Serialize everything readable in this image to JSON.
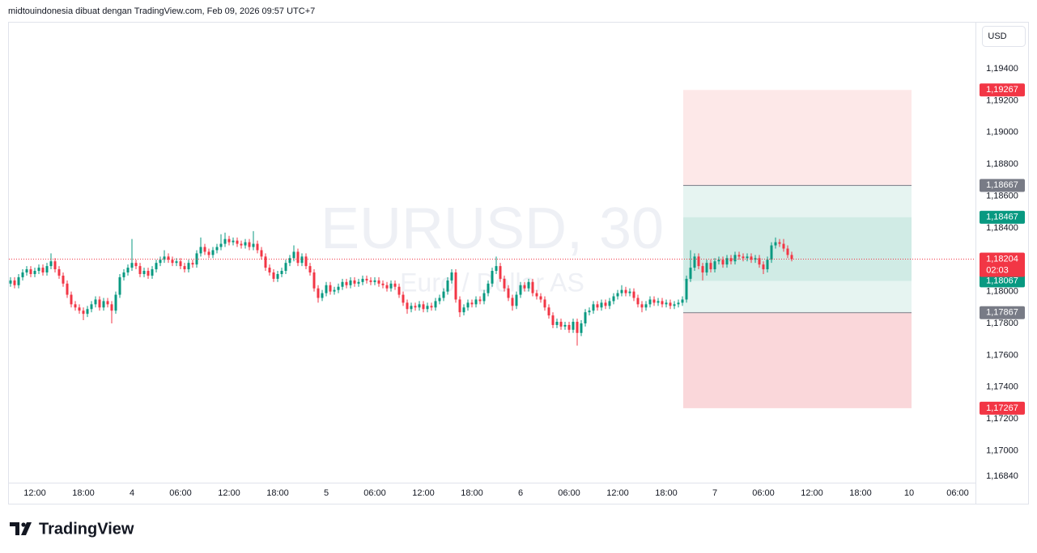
{
  "header": {
    "text": "midtouindonesia dibuat dengan TradingView.com, Feb 09, 2026 09:57 UTC+7",
    "currency": "USD",
    "brand": "TradingView"
  },
  "chart_data": {
    "type": "candlestick",
    "title": "EURUSD, 30",
    "subtitle": "Euro / Dollar AS",
    "up_color": "#089981",
    "down_color": "#f23645",
    "grid": false,
    "xlim": [
      -0.6,
      238.4
    ],
    "xticks": [
      {
        "value": 6,
        "label": "12:00"
      },
      {
        "value": 18,
        "label": "18:00"
      },
      {
        "value": 30,
        "label": "4"
      },
      {
        "value": 42,
        "label": "06:00"
      },
      {
        "value": 54,
        "label": "12:00"
      },
      {
        "value": 66,
        "label": "18:00"
      },
      {
        "value": 78,
        "label": "5"
      },
      {
        "value": 90,
        "label": "06:00"
      },
      {
        "value": 102,
        "label": "12:00"
      },
      {
        "value": 114,
        "label": "18:00"
      },
      {
        "value": 126,
        "label": "6"
      },
      {
        "value": 138,
        "label": "06:00"
      },
      {
        "value": 150,
        "label": "12:00"
      },
      {
        "value": 162,
        "label": "18:00"
      },
      {
        "value": 174,
        "label": "7"
      },
      {
        "value": 186,
        "label": "06:00"
      },
      {
        "value": 198,
        "label": "12:00"
      },
      {
        "value": 210,
        "label": "18:00"
      },
      {
        "value": 222,
        "label": "10"
      },
      {
        "value": 234,
        "label": "06:00"
      }
    ],
    "ylim": [
      1.16799,
      1.19695
    ],
    "yticks": [
      {
        "value": 1.194,
        "label": "1,19400"
      },
      {
        "value": 1.192,
        "label": "1,19200"
      },
      {
        "value": 1.19,
        "label": "1,19000"
      },
      {
        "value": 1.188,
        "label": "1,18800"
      },
      {
        "value": 1.186,
        "label": "1,18600"
      },
      {
        "value": 1.184,
        "label": "1,18400"
      },
      {
        "value": 1.182,
        "label": "1,18200"
      },
      {
        "value": 1.18,
        "label": "1,18000"
      },
      {
        "value": 1.178,
        "label": "1,17800"
      },
      {
        "value": 1.176,
        "label": "1,17600"
      },
      {
        "value": 1.174,
        "label": "1,17400"
      },
      {
        "value": 1.172,
        "label": "1,17200"
      },
      {
        "value": 1.17,
        "label": "1,17000"
      },
      {
        "value": 1.1684,
        "label": "1,16840"
      }
    ],
    "last_price": {
      "value": 1.18204,
      "label": "1,18204",
      "countdown": "02:03",
      "color": "#f23645"
    },
    "position": {
      "x_range": [
        166.2,
        222.6
      ],
      "zones": [
        {
          "from": 1.19267,
          "to": 1.18667,
          "color": "#fde8e8"
        },
        {
          "from": 1.18667,
          "to": 1.17867,
          "color": "#e6f4f1"
        },
        {
          "from": 1.18467,
          "to": 1.18067,
          "color": "#d0ebe5"
        },
        {
          "from": 1.17867,
          "to": 1.17267,
          "color": "#fad7da"
        }
      ],
      "levels": [
        {
          "value": 1.19267,
          "label": "1,19267",
          "color": "#f23645",
          "line": false
        },
        {
          "value": 1.18667,
          "label": "1,18667",
          "color": "#787b86",
          "line": true
        },
        {
          "value": 1.18467,
          "label": "1,18467",
          "color": "#089981",
          "line": false
        },
        {
          "value": 1.18067,
          "label": "1,18067",
          "color": "#089981",
          "line": false
        },
        {
          "value": 1.17867,
          "label": "1,17867",
          "color": "#787b86",
          "line": true
        },
        {
          "value": 1.17267,
          "label": "1,17267",
          "color": "#f23645",
          "line": false
        }
      ]
    },
    "candles": [
      [
        1.1805,
        1.1809,
        1.1803,
        1.1807
      ],
      [
        1.1807,
        1.1809,
        1.1802,
        1.1804
      ],
      [
        1.1804,
        1.1811,
        1.1802,
        1.1809
      ],
      [
        1.1809,
        1.1814,
        1.1807,
        1.1812
      ],
      [
        1.1812,
        1.1816,
        1.181,
        1.1814
      ],
      [
        1.1814,
        1.1816,
        1.1809,
        1.1811
      ],
      [
        1.1811,
        1.1815,
        1.1809,
        1.1813
      ],
      [
        1.1813,
        1.1817,
        1.1811,
        1.1815
      ],
      [
        1.1815,
        1.1817,
        1.181,
        1.1812
      ],
      [
        1.1812,
        1.1818,
        1.181,
        1.1816
      ],
      [
        1.1816,
        1.1824,
        1.1814,
        1.1819
      ],
      [
        1.1819,
        1.1821,
        1.1812,
        1.1814
      ],
      [
        1.1814,
        1.1816,
        1.1808,
        1.181
      ],
      [
        1.181,
        1.1812,
        1.1803,
        1.1805
      ],
      [
        1.1805,
        1.1807,
        1.1796,
        1.1798
      ],
      [
        1.1798,
        1.18,
        1.179,
        1.1792
      ],
      [
        1.1792,
        1.1794,
        1.1788,
        1.179
      ],
      [
        1.179,
        1.1792,
        1.1786,
        1.1788
      ],
      [
        1.1788,
        1.179,
        1.1782,
        1.1786
      ],
      [
        1.1786,
        1.1791,
        1.1784,
        1.1789
      ],
      [
        1.1789,
        1.1794,
        1.1787,
        1.1792
      ],
      [
        1.1792,
        1.1797,
        1.179,
        1.1795
      ],
      [
        1.1795,
        1.1797,
        1.1788,
        1.179
      ],
      [
        1.179,
        1.1796,
        1.1788,
        1.1794
      ],
      [
        1.1794,
        1.1796,
        1.179,
        1.1792
      ],
      [
        1.1792,
        1.1794,
        1.178,
        1.1788
      ],
      [
        1.1788,
        1.18,
        1.1786,
        1.1798
      ],
      [
        1.1798,
        1.1811,
        1.1796,
        1.1809
      ],
      [
        1.1809,
        1.1814,
        1.1807,
        1.1812
      ],
      [
        1.1812,
        1.1817,
        1.181,
        1.1815
      ],
      [
        1.1815,
        1.1833,
        1.1813,
        1.1818
      ],
      [
        1.1818,
        1.182,
        1.1814,
        1.1816
      ],
      [
        1.1816,
        1.1818,
        1.1809,
        1.1811
      ],
      [
        1.1811,
        1.1815,
        1.1809,
        1.1813
      ],
      [
        1.1813,
        1.1815,
        1.1808,
        1.181
      ],
      [
        1.181,
        1.1816,
        1.1808,
        1.1814
      ],
      [
        1.1814,
        1.182,
        1.1812,
        1.1818
      ],
      [
        1.1818,
        1.1822,
        1.1816,
        1.182
      ],
      [
        1.182,
        1.1826,
        1.1818,
        1.1822
      ],
      [
        1.1822,
        1.1824,
        1.1818,
        1.182
      ],
      [
        1.182,
        1.1822,
        1.1816,
        1.1818
      ],
      [
        1.1818,
        1.1821,
        1.1816,
        1.1819
      ],
      [
        1.1819,
        1.1821,
        1.1814,
        1.1816
      ],
      [
        1.1816,
        1.1818,
        1.1812,
        1.1814
      ],
      [
        1.1814,
        1.182,
        1.1812,
        1.1818
      ],
      [
        1.1818,
        1.182,
        1.1815,
        1.1817
      ],
      [
        1.1817,
        1.1826,
        1.1815,
        1.1824
      ],
      [
        1.1824,
        1.1834,
        1.1822,
        1.1828
      ],
      [
        1.1828,
        1.183,
        1.1823,
        1.1825
      ],
      [
        1.1825,
        1.1827,
        1.1821,
        1.1823
      ],
      [
        1.1823,
        1.1828,
        1.1821,
        1.1826
      ],
      [
        1.1826,
        1.183,
        1.1824,
        1.1828
      ],
      [
        1.1828,
        1.1836,
        1.1826,
        1.183
      ],
      [
        1.183,
        1.1837,
        1.1828,
        1.1833
      ],
      [
        1.1833,
        1.1835,
        1.1829,
        1.1831
      ],
      [
        1.1831,
        1.1834,
        1.1829,
        1.1832
      ],
      [
        1.1832,
        1.1834,
        1.1828,
        1.183
      ],
      [
        1.183,
        1.1832,
        1.1827,
        1.1829
      ],
      [
        1.1829,
        1.1833,
        1.1827,
        1.1831
      ],
      [
        1.1831,
        1.1833,
        1.1826,
        1.1828
      ],
      [
        1.1828,
        1.1838,
        1.1826,
        1.183
      ],
      [
        1.183,
        1.1832,
        1.1824,
        1.1826
      ],
      [
        1.1826,
        1.1828,
        1.182,
        1.1822
      ],
      [
        1.1822,
        1.1824,
        1.1813,
        1.1815
      ],
      [
        1.1815,
        1.1817,
        1.181,
        1.1812
      ],
      [
        1.1812,
        1.1814,
        1.1806,
        1.1808
      ],
      [
        1.1808,
        1.1813,
        1.1806,
        1.1811
      ],
      [
        1.1811,
        1.1815,
        1.1809,
        1.1813
      ],
      [
        1.1813,
        1.182,
        1.1811,
        1.1818
      ],
      [
        1.1818,
        1.1823,
        1.1816,
        1.1821
      ],
      [
        1.1821,
        1.1829,
        1.1819,
        1.1825
      ],
      [
        1.1825,
        1.1827,
        1.1816,
        1.1818
      ],
      [
        1.1818,
        1.1824,
        1.1816,
        1.1822
      ],
      [
        1.1822,
        1.1824,
        1.1814,
        1.1816
      ],
      [
        1.1816,
        1.1818,
        1.181,
        1.1812
      ],
      [
        1.1812,
        1.1814,
        1.18,
        1.1802
      ],
      [
        1.1802,
        1.1804,
        1.1793,
        1.1796
      ],
      [
        1.1796,
        1.1801,
        1.1794,
        1.1799
      ],
      [
        1.1799,
        1.1806,
        1.1797,
        1.1804
      ],
      [
        1.1804,
        1.1806,
        1.1798,
        1.18
      ],
      [
        1.18,
        1.1803,
        1.1798,
        1.1801
      ],
      [
        1.1801,
        1.1805,
        1.1799,
        1.1803
      ],
      [
        1.1803,
        1.1808,
        1.1801,
        1.1806
      ],
      [
        1.1806,
        1.1808,
        1.1802,
        1.1804
      ],
      [
        1.1804,
        1.1809,
        1.1802,
        1.1807
      ],
      [
        1.1807,
        1.1809,
        1.1803,
        1.1805
      ],
      [
        1.1805,
        1.1808,
        1.1803,
        1.1806
      ],
      [
        1.1806,
        1.181,
        1.1804,
        1.1808
      ],
      [
        1.1808,
        1.181,
        1.1805,
        1.1807
      ],
      [
        1.1807,
        1.1809,
        1.1804,
        1.1806
      ],
      [
        1.1806,
        1.1809,
        1.1804,
        1.1807
      ],
      [
        1.1807,
        1.1809,
        1.1803,
        1.1805
      ],
      [
        1.1805,
        1.1807,
        1.1802,
        1.1804
      ],
      [
        1.1804,
        1.1806,
        1.18,
        1.1802
      ],
      [
        1.1802,
        1.1807,
        1.18,
        1.1805
      ],
      [
        1.1805,
        1.1807,
        1.1801,
        1.1803
      ],
      [
        1.1803,
        1.1805,
        1.1796,
        1.1798
      ],
      [
        1.1798,
        1.18,
        1.1791,
        1.1793
      ],
      [
        1.1793,
        1.1795,
        1.1786,
        1.1789
      ],
      [
        1.1789,
        1.1793,
        1.1787,
        1.1791
      ],
      [
        1.1791,
        1.1793,
        1.1788,
        1.179
      ],
      [
        1.179,
        1.1794,
        1.1788,
        1.1792
      ],
      [
        1.1792,
        1.1794,
        1.1787,
        1.1789
      ],
      [
        1.1789,
        1.1793,
        1.1787,
        1.1791
      ],
      [
        1.1791,
        1.1793,
        1.1788,
        1.179
      ],
      [
        1.179,
        1.1796,
        1.1788,
        1.1794
      ],
      [
        1.1794,
        1.1798,
        1.1792,
        1.1796
      ],
      [
        1.1796,
        1.1802,
        1.1794,
        1.18
      ],
      [
        1.18,
        1.1809,
        1.1798,
        1.1807
      ],
      [
        1.1807,
        1.1814,
        1.1805,
        1.1812
      ],
      [
        1.1812,
        1.1814,
        1.1793,
        1.1795
      ],
      [
        1.1795,
        1.1797,
        1.1784,
        1.1787
      ],
      [
        1.1787,
        1.1792,
        1.1785,
        1.179
      ],
      [
        1.179,
        1.1795,
        1.1788,
        1.1793
      ],
      [
        1.1793,
        1.1795,
        1.179,
        1.1792
      ],
      [
        1.1792,
        1.1797,
        1.179,
        1.1795
      ],
      [
        1.1795,
        1.1797,
        1.1792,
        1.1794
      ],
      [
        1.1794,
        1.1801,
        1.1792,
        1.1799
      ],
      [
        1.1799,
        1.1807,
        1.1797,
        1.1805
      ],
      [
        1.1805,
        1.1815,
        1.1803,
        1.1813
      ],
      [
        1.1813,
        1.1822,
        1.1811,
        1.1816
      ],
      [
        1.1816,
        1.1818,
        1.1806,
        1.1808
      ],
      [
        1.1808,
        1.181,
        1.18,
        1.1802
      ],
      [
        1.1802,
        1.1804,
        1.1794,
        1.1796
      ],
      [
        1.1796,
        1.1798,
        1.1788,
        1.1791
      ],
      [
        1.1791,
        1.18,
        1.1789,
        1.1798
      ],
      [
        1.1798,
        1.1806,
        1.1796,
        1.1804
      ],
      [
        1.1804,
        1.1806,
        1.18,
        1.1802
      ],
      [
        1.1802,
        1.1808,
        1.18,
        1.1806
      ],
      [
        1.1806,
        1.1808,
        1.1797,
        1.1799
      ],
      [
        1.1799,
        1.1801,
        1.1795,
        1.1797
      ],
      [
        1.1797,
        1.1799,
        1.1793,
        1.1795
      ],
      [
        1.1795,
        1.1797,
        1.1788,
        1.179
      ],
      [
        1.179,
        1.1792,
        1.1783,
        1.1785
      ],
      [
        1.1785,
        1.1787,
        1.1777,
        1.1779
      ],
      [
        1.1779,
        1.1783,
        1.1777,
        1.1781
      ],
      [
        1.1781,
        1.1783,
        1.1776,
        1.1778
      ],
      [
        1.1778,
        1.1781,
        1.1776,
        1.1779
      ],
      [
        1.1779,
        1.1781,
        1.1774,
        1.1776
      ],
      [
        1.1776,
        1.1783,
        1.1774,
        1.1781
      ],
      [
        1.1781,
        1.1783,
        1.1766,
        1.1774
      ],
      [
        1.1774,
        1.1782,
        1.1772,
        1.178
      ],
      [
        1.178,
        1.1789,
        1.1778,
        1.1787
      ],
      [
        1.1787,
        1.179,
        1.1785,
        1.1788
      ],
      [
        1.1788,
        1.1794,
        1.1786,
        1.1792
      ],
      [
        1.1792,
        1.1794,
        1.1788,
        1.179
      ],
      [
        1.179,
        1.1795,
        1.1788,
        1.1793
      ],
      [
        1.1793,
        1.1795,
        1.1789,
        1.1791
      ],
      [
        1.1791,
        1.1796,
        1.1789,
        1.1794
      ],
      [
        1.1794,
        1.1799,
        1.1792,
        1.1797
      ],
      [
        1.1797,
        1.1801,
        1.1795,
        1.1799
      ],
      [
        1.1799,
        1.1804,
        1.1797,
        1.1801
      ],
      [
        1.1801,
        1.1803,
        1.1797,
        1.1799
      ],
      [
        1.1799,
        1.1802,
        1.1797,
        1.18
      ],
      [
        1.18,
        1.1802,
        1.1794,
        1.1796
      ],
      [
        1.1796,
        1.1798,
        1.179,
        1.1792
      ],
      [
        1.1792,
        1.1794,
        1.1787,
        1.179
      ],
      [
        1.179,
        1.1794,
        1.1788,
        1.1792
      ],
      [
        1.1792,
        1.1797,
        1.179,
        1.1795
      ],
      [
        1.1795,
        1.1797,
        1.1791,
        1.1793
      ],
      [
        1.1793,
        1.1796,
        1.1791,
        1.1794
      ],
      [
        1.1794,
        1.1796,
        1.179,
        1.1792
      ],
      [
        1.1792,
        1.1795,
        1.179,
        1.1793
      ],
      [
        1.1793,
        1.1795,
        1.1789,
        1.1791
      ],
      [
        1.1791,
        1.1794,
        1.1789,
        1.1792
      ],
      [
        1.1792,
        1.1795,
        1.179,
        1.1793
      ],
      [
        1.1793,
        1.1797,
        1.1791,
        1.1795
      ],
      [
        1.1795,
        1.181,
        1.1793,
        1.1808
      ],
      [
        1.1808,
        1.1826,
        1.1806,
        1.1815
      ],
      [
        1.1815,
        1.1824,
        1.1813,
        1.1822
      ],
      [
        1.1822,
        1.1824,
        1.1814,
        1.1816
      ],
      [
        1.1816,
        1.1818,
        1.1807,
        1.1812
      ],
      [
        1.1812,
        1.182,
        1.181,
        1.1818
      ],
      [
        1.1818,
        1.182,
        1.1812,
        1.1814
      ],
      [
        1.1814,
        1.1821,
        1.1812,
        1.1819
      ],
      [
        1.1819,
        1.1822,
        1.1817,
        1.182
      ],
      [
        1.182,
        1.1822,
        1.1815,
        1.1817
      ],
      [
        1.1817,
        1.1823,
        1.1815,
        1.1821
      ],
      [
        1.1821,
        1.1823,
        1.1817,
        1.1819
      ],
      [
        1.1819,
        1.1825,
        1.1817,
        1.1823
      ],
      [
        1.1823,
        1.1825,
        1.182,
        1.1822
      ],
      [
        1.1822,
        1.1824,
        1.1819,
        1.1821
      ],
      [
        1.1821,
        1.1824,
        1.1819,
        1.1822
      ],
      [
        1.1822,
        1.1824,
        1.1818,
        1.182
      ],
      [
        1.182,
        1.1823,
        1.1818,
        1.1821
      ],
      [
        1.1821,
        1.1823,
        1.1815,
        1.1817
      ],
      [
        1.1817,
        1.1819,
        1.1811,
        1.1814
      ],
      [
        1.1814,
        1.1822,
        1.1812,
        1.182
      ],
      [
        1.182,
        1.1831,
        1.1818,
        1.1829
      ],
      [
        1.1829,
        1.1834,
        1.1827,
        1.1831
      ],
      [
        1.1831,
        1.1833,
        1.1828,
        1.183
      ],
      [
        1.183,
        1.1833,
        1.1825,
        1.1827
      ],
      [
        1.1827,
        1.1829,
        1.1821,
        1.1823
      ],
      [
        1.1823,
        1.1825,
        1.1819,
        1.18204
      ]
    ]
  }
}
